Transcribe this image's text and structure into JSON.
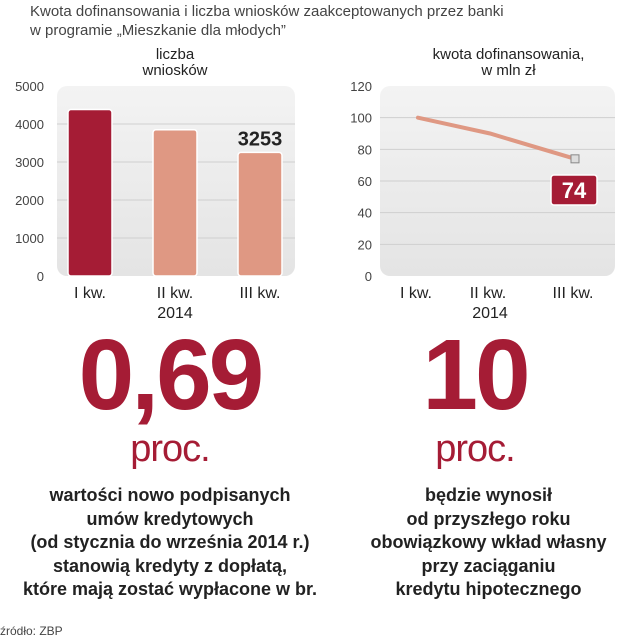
{
  "title": [
    "Kwota dofinansowania i liczba wniosków zaakceptowanych przez banki",
    "w programie „Mieszkanie dla młodych”"
  ],
  "chart_data": [
    {
      "type": "bar",
      "title": [
        "liczba",
        "wniosków"
      ],
      "categories": [
        "I kw.",
        "II kw.",
        "III kw."
      ],
      "xgroup_label": "2014",
      "values": [
        4380,
        3850,
        3253
      ],
      "value_label": "3253",
      "ylim": [
        0,
        5000
      ],
      "yticks": [
        0,
        1000,
        2000,
        3000,
        4000,
        5000
      ],
      "grid": true,
      "colors": [
        "#a51c35",
        "#df9883",
        "#df9883"
      ]
    },
    {
      "type": "line",
      "title": [
        "kwota dofinansowania,",
        "w mln zł"
      ],
      "categories": [
        "I kw.",
        "II kw.",
        "III kw."
      ],
      "xgroup_label": "2014",
      "values": [
        100,
        90,
        74
      ],
      "value_label": "74",
      "ylim": [
        0,
        120
      ],
      "yticks": [
        0,
        20,
        40,
        60,
        80,
        100,
        120
      ],
      "grid": true,
      "color": "#df9883",
      "label_color": "#a51c35"
    }
  ],
  "stats": [
    {
      "value": "0,69",
      "unit": "proc.",
      "text": [
        "wartości nowo podpisanych",
        "umów kredytowych",
        "(od stycznia do września 2014 r.)",
        "stanowią kredyty z dopłatą,",
        "które mają zostać wypłacone w br."
      ]
    },
    {
      "value": "10",
      "unit": "proc.",
      "text": [
        "będzie wynosił",
        "od przyszłego roku",
        "obowiązkowy wkład własny",
        "przy zaciąganiu",
        "kredytu hipotecznego"
      ]
    }
  ],
  "source": "źródło: ZBP"
}
